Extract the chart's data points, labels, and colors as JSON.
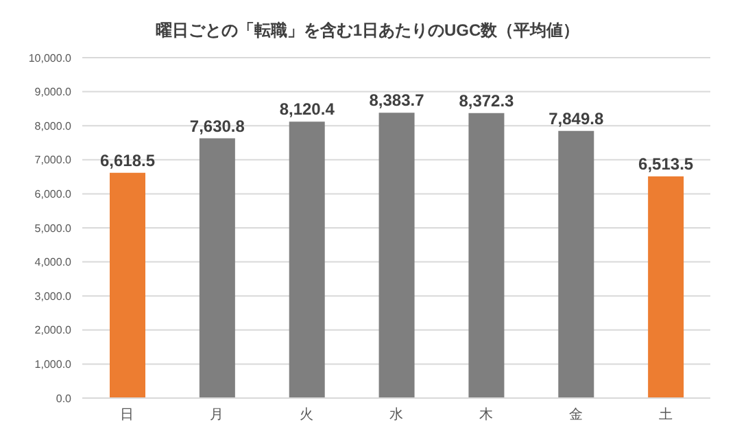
{
  "chart_data": {
    "type": "bar",
    "title": "曜日ごとの「転職」を含む1日あたりのUGC数（平均値）",
    "categories": [
      "日",
      "月",
      "火",
      "水",
      "木",
      "金",
      "土"
    ],
    "values": [
      6618.5,
      7630.8,
      8120.4,
      8383.7,
      8372.3,
      7849.8,
      6513.5
    ],
    "colors": [
      "#ed7d31",
      "#7f7f7f",
      "#7f7f7f",
      "#7f7f7f",
      "#7f7f7f",
      "#7f7f7f",
      "#ed7d31"
    ],
    "value_labels": [
      "6,618.5",
      "7,630.8",
      "8,120.4",
      "8,383.7",
      "8,372.3",
      "7,849.8",
      "6,513.5"
    ],
    "ylim": [
      0,
      10000
    ],
    "yticks": [
      {
        "value": 0,
        "label": "0.0"
      },
      {
        "value": 1000,
        "label": "1,000.0"
      },
      {
        "value": 2000,
        "label": "2,000.0"
      },
      {
        "value": 3000,
        "label": "3,000.0"
      },
      {
        "value": 4000,
        "label": "4,000.0"
      },
      {
        "value": 5000,
        "label": "5,000.0"
      },
      {
        "value": 6000,
        "label": "6,000.0"
      },
      {
        "value": 7000,
        "label": "7,000.0"
      },
      {
        "value": 8000,
        "label": "8,000.0"
      },
      {
        "value": 9000,
        "label": "9,000.0"
      },
      {
        "value": 10000,
        "label": "10,000.0"
      }
    ],
    "grid": "y"
  }
}
